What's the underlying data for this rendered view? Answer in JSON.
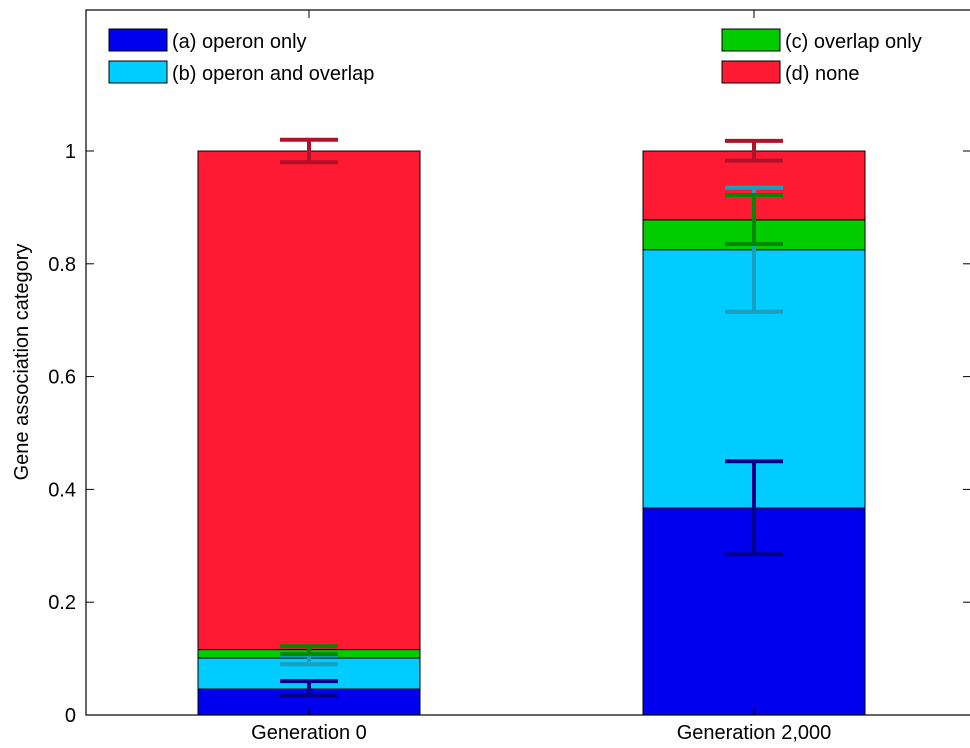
{
  "chart_data": {
    "type": "bar",
    "stacked": true,
    "title": "",
    "xlabel": "",
    "ylabel": "Gene association category",
    "ylim": [
      0,
      1.25
    ],
    "yticks": [
      0,
      0.2,
      0.4,
      0.6,
      0.8,
      1
    ],
    "ytick_labels": [
      "0",
      "0.2",
      "0.4",
      "0.6",
      "0.8",
      "1"
    ],
    "categories": [
      "Generation 0",
      "Generation 2,000"
    ],
    "grid": false,
    "legend_placement": "top",
    "series": [
      {
        "name": "(a) operon only",
        "color": "#0000ee",
        "error_color": "#00008b",
        "values": [
          0.046,
          0.367
        ],
        "error_low": [
          0.035,
          0.285
        ],
        "error_high": [
          0.06,
          0.45
        ]
      },
      {
        "name": "(b) operon and overlap",
        "color": "#00ccff",
        "error_color": "#1a9fbf",
        "values": [
          0.055,
          0.458
        ],
        "error_low": [
          0.09,
          0.715
        ],
        "error_high": [
          0.105,
          0.935
        ]
      },
      {
        "name": "(c) overlap only",
        "color": "#00cc00",
        "error_color": "#008800",
        "values": [
          0.015,
          0.053
        ],
        "error_low": [
          0.108,
          0.835
        ],
        "error_high": [
          0.122,
          0.922
        ]
      },
      {
        "name": "(d) none",
        "color": "#ff1a33",
        "error_color": "#b3102a",
        "values": [
          0.884,
          0.122
        ],
        "error_low": [
          0.98,
          0.983
        ],
        "error_high": [
          1.02,
          1.018
        ]
      }
    ]
  }
}
